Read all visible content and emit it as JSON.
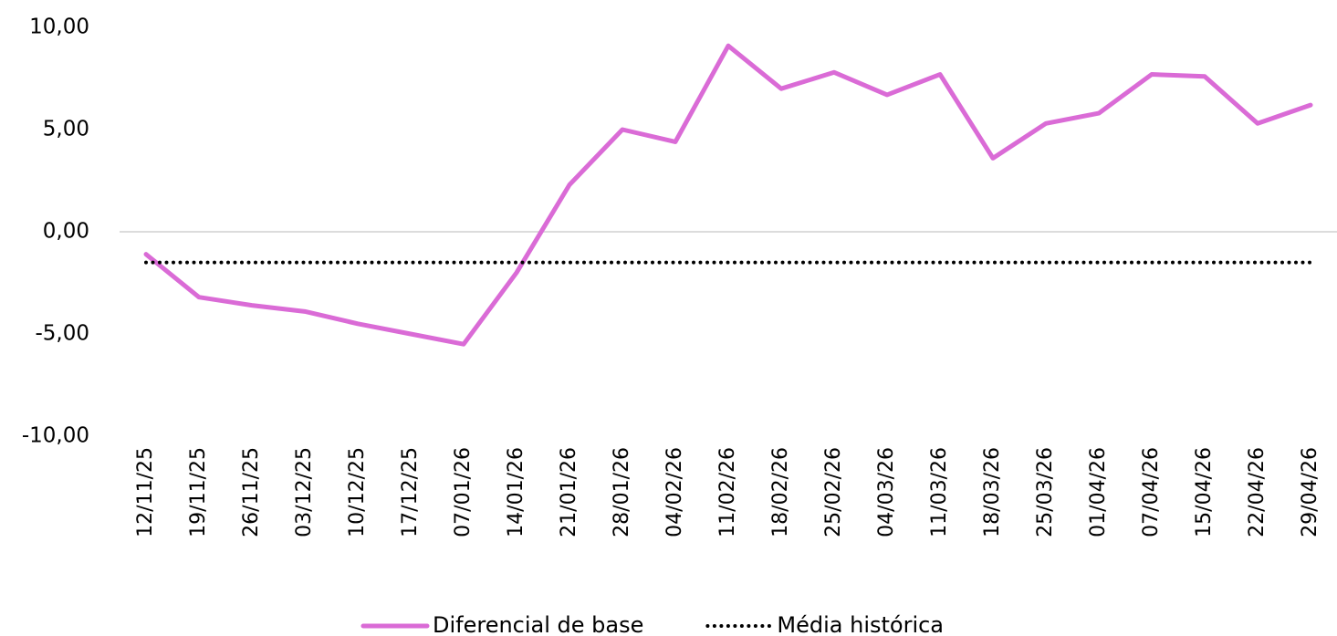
{
  "chart_data": {
    "type": "line",
    "categories": [
      "12/11/25",
      "19/11/25",
      "26/11/25",
      "03/12/25",
      "10/12/25",
      "17/12/25",
      "07/01/26",
      "14/01/26",
      "21/01/26",
      "28/01/26",
      "04/02/26",
      "11/02/26",
      "18/02/26",
      "25/02/26",
      "04/03/26",
      "11/03/26",
      "18/03/26",
      "25/03/26",
      "01/04/26",
      "07/04/26",
      "15/04/26",
      "22/04/26",
      "29/04/26"
    ],
    "series": [
      {
        "name": "Diferencial de base",
        "color": "#da6bd6",
        "style": "solid",
        "values": [
          -1.1,
          -3.2,
          -3.6,
          -3.9,
          -4.5,
          -5.0,
          -5.5,
          -2.0,
          2.3,
          5.0,
          4.4,
          9.1,
          7.0,
          7.8,
          6.7,
          7.7,
          3.6,
          5.3,
          5.8,
          7.7,
          7.6,
          5.3,
          6.2
        ]
      },
      {
        "name": "Média histórica",
        "color": "#000000",
        "style": "dotted",
        "values": [
          -1.5,
          -1.5,
          -1.5,
          -1.5,
          -1.5,
          -1.5,
          -1.5,
          -1.5,
          -1.5,
          -1.5,
          -1.5,
          -1.5,
          -1.5,
          -1.5,
          -1.5,
          -1.5,
          -1.5,
          -1.5,
          -1.5,
          -1.5,
          -1.5,
          -1.5,
          -1.5
        ]
      }
    ],
    "ylim": [
      -10,
      10
    ],
    "yticks": [
      {
        "value": -10,
        "label": "-10,00"
      },
      {
        "value": -5,
        "label": "-5,00"
      },
      {
        "value": 0,
        "label": "0,00"
      },
      {
        "value": 5,
        "label": "5,00"
      },
      {
        "value": 10,
        "label": "10,00"
      }
    ],
    "grid": false,
    "legend": "bottom"
  }
}
